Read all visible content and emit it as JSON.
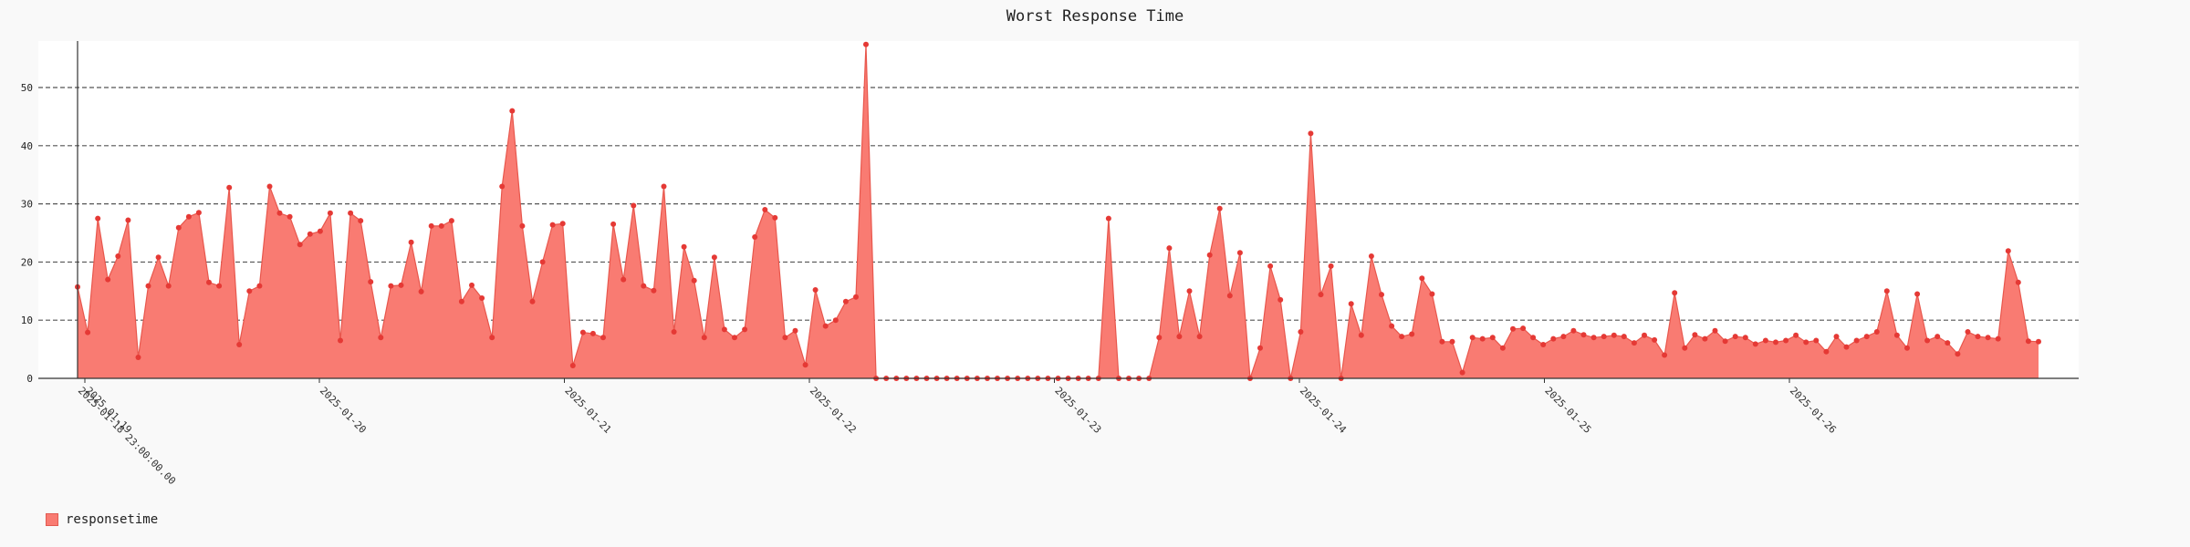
{
  "chart_data": {
    "type": "area",
    "title": "Worst Response Time",
    "xlabel": "",
    "ylabel": "",
    "ylim": [
      0,
      58
    ],
    "yticks": [
      0,
      10,
      20,
      30,
      40,
      50
    ],
    "grid": true,
    "legend_position": "bottom-left",
    "colors": {
      "fill": "#f97b72",
      "line": "#e8574d",
      "marker": "#e53935",
      "grid": "#555555"
    },
    "x_date_ticks": [
      "2025-01-19",
      "2025-01-20",
      "2025-01-21",
      "2025-01-22",
      "2025-01-23",
      "2025-01-24",
      "2025-01-25",
      "2025-01-26"
    ],
    "first_x_label": "2025-01-18 23:00:00.00",
    "series": [
      {
        "name": "responsetime",
        "values": [
          15.7,
          7.9,
          27.5,
          17,
          21,
          27.2,
          3.6,
          15.9,
          20.8,
          15.9,
          25.9,
          27.8,
          28.5,
          16.5,
          15.9,
          32.8,
          5.8,
          15,
          15.9,
          33,
          28.4,
          27.8,
          23,
          24.8,
          25.3,
          28.4,
          6.5,
          28.4,
          27.1,
          16.6,
          7,
          15.9,
          16,
          23.4,
          14.9,
          26.2,
          26.2,
          27.1,
          13.2,
          16,
          13.8,
          7,
          33,
          46,
          26.2,
          13.2,
          20,
          26.4,
          26.6,
          2.2,
          7.9,
          7.7,
          7,
          26.5,
          17,
          29.7,
          15.9,
          15.1,
          33,
          8,
          22.6,
          16.8,
          7,
          20.8,
          8.4,
          7,
          8.4,
          24.3,
          29,
          27.6,
          7,
          8.2,
          2.3,
          15.2,
          9,
          10,
          13.2,
          14,
          57.4,
          0,
          0,
          0,
          0,
          0,
          0,
          0,
          0,
          0,
          0,
          0,
          0,
          0,
          0,
          0,
          0,
          0,
          0,
          0,
          0,
          0,
          0,
          0,
          27.5,
          0,
          0,
          0,
          0,
          7,
          22.4,
          7.2,
          15,
          7.2,
          21.2,
          29.2,
          14.2,
          21.6,
          0,
          5.2,
          19.3,
          13.5,
          0,
          8,
          42.1,
          14.4,
          19.3,
          0,
          12.8,
          7.4,
          21,
          14.4,
          9,
          7.2,
          7.6,
          17.2,
          14.5,
          6.3,
          6.3,
          1,
          7,
          6.8,
          7,
          5.2,
          8.5,
          8.6,
          7,
          5.8,
          6.8,
          7.2,
          8.2,
          7.5,
          7,
          7.2,
          7.4,
          7.2,
          6.1,
          7.4,
          6.6,
          4,
          14.7,
          5.2,
          7.5,
          6.8,
          8.2,
          6.4,
          7.2,
          7,
          5.9,
          6.5,
          6.2,
          6.5,
          7.4,
          6.2,
          6.5,
          4.6,
          7.2,
          5.4,
          6.5,
          7.2,
          8,
          15,
          7.4,
          5.2,
          14.5,
          6.5,
          7.2,
          6.1,
          4.2,
          8,
          7.2,
          7,
          6.8,
          21.9,
          16.5,
          6.4,
          6.3
        ]
      }
    ]
  },
  "legend": {
    "label": "responsetime"
  }
}
